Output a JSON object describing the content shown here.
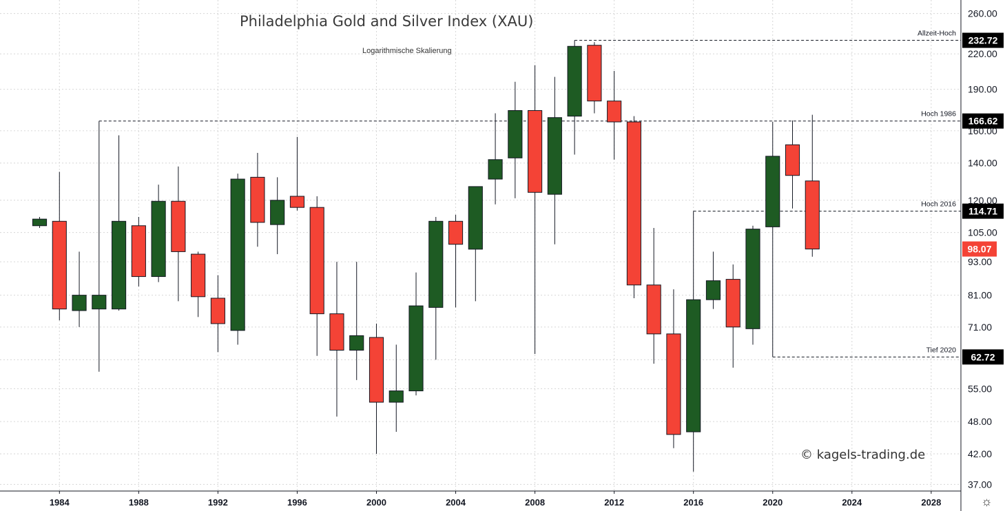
{
  "chart_data": {
    "type": "candlestick",
    "title": "Philadelphia Gold and Silver Index (XAU)",
    "subtitle": "Logarithmische Skalierung",
    "watermark": "© kagels-trading.de",
    "interval": "yearly",
    "y_scale": "log",
    "ylim": [
      36,
      275
    ],
    "xlim": [
      1981,
      2029.5
    ],
    "grid": true,
    "colors": {
      "up": "#1e5b23",
      "down": "#f44336",
      "level_box": "#000000",
      "last_box": "#f44336"
    },
    "y_ticks": [
      "260.00",
      "220.00",
      "190.00",
      "160.00",
      "140.00",
      "120.00",
      "105.00",
      "93.00",
      "81.00",
      "71.00",
      "62.00",
      "55.00",
      "48.00",
      "42.00",
      "37.00"
    ],
    "x_ticks": [
      "1984",
      "1988",
      "1992",
      "1996",
      "2000",
      "2004",
      "2008",
      "2012",
      "2016",
      "2020",
      "2024",
      "2028"
    ],
    "candles": [
      {
        "year": 1983,
        "open": 108,
        "high": 112,
        "low": 107,
        "close": 111
      },
      {
        "year": 1984,
        "open": 110,
        "high": 135,
        "low": 73,
        "close": 76.5
      },
      {
        "year": 1985,
        "open": 76,
        "high": 97,
        "low": 71,
        "close": 81
      },
      {
        "year": 1986,
        "open": 76.5,
        "high": 166.6,
        "low": 59,
        "close": 81
      },
      {
        "year": 1987,
        "open": 76.5,
        "high": 157,
        "low": 76,
        "close": 110
      },
      {
        "year": 1988,
        "open": 108,
        "high": 112,
        "low": 84,
        "close": 87.5
      },
      {
        "year": 1989,
        "open": 87.5,
        "high": 128,
        "low": 85.5,
        "close": 119.5
      },
      {
        "year": 1990,
        "open": 119.5,
        "high": 138,
        "low": 79,
        "close": 97
      },
      {
        "year": 1991,
        "open": 96,
        "high": 97,
        "low": 74,
        "close": 80.5
      },
      {
        "year": 1992,
        "open": 80,
        "high": 88,
        "low": 64,
        "close": 72
      },
      {
        "year": 1993,
        "open": 70,
        "high": 134,
        "low": 66,
        "close": 131
      },
      {
        "year": 1994,
        "open": 132,
        "high": 146,
        "low": 99,
        "close": 109.5
      },
      {
        "year": 1995,
        "open": 108.5,
        "high": 132,
        "low": 96,
        "close": 120
      },
      {
        "year": 1996,
        "open": 122,
        "high": 156,
        "low": 115,
        "close": 116.5
      },
      {
        "year": 1997,
        "open": 116.5,
        "high": 122,
        "low": 63,
        "close": 75
      },
      {
        "year": 1998,
        "open": 75,
        "high": 93,
        "low": 49,
        "close": 64.5
      },
      {
        "year": 1999,
        "open": 64.5,
        "high": 93,
        "low": 57,
        "close": 68.5
      },
      {
        "year": 2000,
        "open": 68,
        "high": 72,
        "low": 42,
        "close": 52
      },
      {
        "year": 2001,
        "open": 52,
        "high": 66,
        "low": 46,
        "close": 54.5
      },
      {
        "year": 2002,
        "open": 54.5,
        "high": 89,
        "low": 53.5,
        "close": 77.5
      },
      {
        "year": 2003,
        "open": 77,
        "high": 112,
        "low": 62,
        "close": 110
      },
      {
        "year": 2004,
        "open": 110,
        "high": 113,
        "low": 77,
        "close": 100
      },
      {
        "year": 2005,
        "open": 98,
        "high": 127,
        "low": 79,
        "close": 127
      },
      {
        "year": 2006,
        "open": 131,
        "high": 172,
        "low": 118,
        "close": 142
      },
      {
        "year": 2007,
        "open": 143,
        "high": 196,
        "low": 121,
        "close": 174
      },
      {
        "year": 2008,
        "open": 174,
        "high": 210,
        "low": 63.5,
        "close": 124
      },
      {
        "year": 2009,
        "open": 123,
        "high": 200,
        "low": 100,
        "close": 169
      },
      {
        "year": 2010,
        "open": 170,
        "high": 232.7,
        "low": 145,
        "close": 227
      },
      {
        "year": 2011,
        "open": 228,
        "high": 231,
        "low": 172,
        "close": 181
      },
      {
        "year": 2012,
        "open": 181,
        "high": 205,
        "low": 142,
        "close": 166
      },
      {
        "year": 2013,
        "open": 166,
        "high": 170,
        "low": 80,
        "close": 84.5
      },
      {
        "year": 2014,
        "open": 84.5,
        "high": 107,
        "low": 61,
        "close": 69
      },
      {
        "year": 2015,
        "open": 69,
        "high": 83,
        "low": 43,
        "close": 45.5
      },
      {
        "year": 2016,
        "open": 46,
        "high": 114.7,
        "low": 39,
        "close": 79.5
      },
      {
        "year": 2017,
        "open": 79.5,
        "high": 97,
        "low": 76.5,
        "close": 86
      },
      {
        "year": 2018,
        "open": 86.5,
        "high": 92,
        "low": 60,
        "close": 71
      },
      {
        "year": 2019,
        "open": 70.5,
        "high": 108,
        "low": 66,
        "close": 106.5
      },
      {
        "year": 2020,
        "open": 107.5,
        "high": 166,
        "low": 62.72,
        "close": 144
      },
      {
        "year": 2021,
        "open": 151,
        "high": 167,
        "low": 116,
        "close": 133
      },
      {
        "year": 2022,
        "open": 130,
        "high": 171,
        "low": 95,
        "close": 98.07
      }
    ],
    "levels": [
      {
        "label": "Allzeit-Hoch",
        "value": 232.72,
        "value_text": "232.72",
        "from_year": 2010
      },
      {
        "label": "Hoch 1986",
        "value": 166.62,
        "value_text": "166.62",
        "from_year": 1986
      },
      {
        "label": "Hoch 2016",
        "value": 114.71,
        "value_text": "114.71",
        "from_year": 2016
      },
      {
        "label": "Tief 2020",
        "value": 62.72,
        "value_text": "62.72",
        "from_year": 2020
      }
    ],
    "last_price": {
      "value": 98.07,
      "value_text": "98.07"
    }
  }
}
